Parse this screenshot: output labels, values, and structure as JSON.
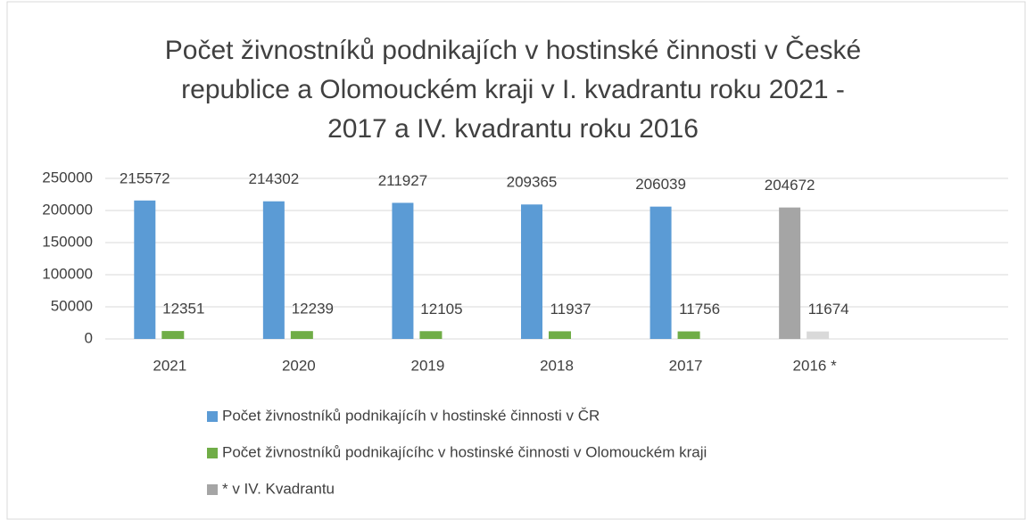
{
  "chart_data": {
    "type": "bar",
    "title": [
      "Počet živnostníků podnikajích v hostinské činnosti v České",
      "republice a Olomouckém kraji v I. kvadrantu roku 2021 -",
      "2017 a IV. kvadrantu roku 2016"
    ],
    "categories": [
      "2021",
      "2020",
      "2019",
      "2018",
      "2017",
      "2016 *",
      null
    ],
    "series": [
      {
        "name": "Počet živnostníků podnikajícíh v hostinské činnosti v ČR",
        "color": "#5b9bd5",
        "point_colors": [
          "#5b9bd5",
          "#5b9bd5",
          "#5b9bd5",
          "#5b9bd5",
          "#5b9bd5",
          "#a5a5a5",
          null
        ],
        "values": [
          215572,
          214302,
          211927,
          209365,
          206039,
          204672,
          null
        ]
      },
      {
        "name": "Počet živnostníků podnikajícíhc v hostinské činnosti v Olomouckém kraji",
        "color": "#70ad47",
        "point_colors": [
          "#70ad47",
          "#70ad47",
          "#70ad47",
          "#70ad47",
          "#70ad47",
          "#d9d9d9",
          null
        ],
        "values": [
          12351,
          12239,
          12105,
          11937,
          11756,
          11674,
          null
        ]
      }
    ],
    "extra_legend": {
      "name": "* v IV. Kvadrantu",
      "color": "#a5a5a5"
    },
    "ylim": [
      0,
      250000
    ],
    "yticks": [
      0,
      50000,
      100000,
      150000,
      200000,
      250000
    ],
    "grid": true
  }
}
